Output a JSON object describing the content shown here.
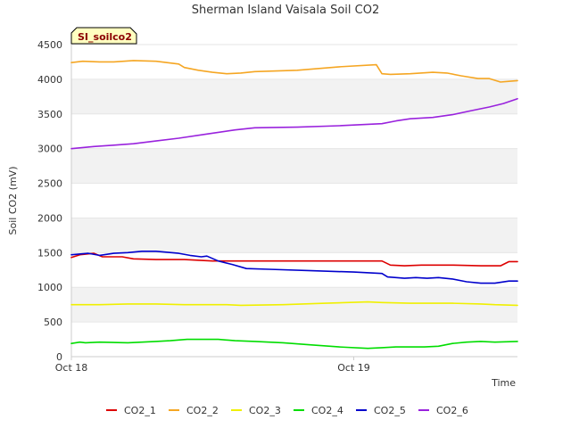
{
  "chart_data": {
    "type": "line",
    "title": "Sherman Island Vaisala Soil CO2",
    "station_badge": "SI_soilco2",
    "xlabel": "Time",
    "ylabel": "Soil CO2 (mV)",
    "ylim": [
      0,
      4500
    ],
    "xlim": [
      0,
      1.58
    ],
    "yticks": [
      0,
      500,
      1000,
      1500,
      2000,
      2500,
      3000,
      3500,
      4000,
      4500
    ],
    "xticks": [
      {
        "value": 0,
        "label": "Oct 18"
      },
      {
        "value": 1,
        "label": "Oct 19"
      }
    ],
    "grid": "horizontal bands",
    "legend_position": "bottom",
    "series": [
      {
        "name": "CO2_1",
        "color": "#dd0000",
        "points": [
          [
            0.0,
            1430
          ],
          [
            0.03,
            1470
          ],
          [
            0.08,
            1490
          ],
          [
            0.11,
            1440
          ],
          [
            0.18,
            1440
          ],
          [
            0.22,
            1410
          ],
          [
            0.3,
            1400
          ],
          [
            0.4,
            1400
          ],
          [
            0.5,
            1380
          ],
          [
            0.65,
            1380
          ],
          [
            0.8,
            1380
          ],
          [
            1.0,
            1380
          ],
          [
            1.1,
            1380
          ],
          [
            1.13,
            1320
          ],
          [
            1.18,
            1310
          ],
          [
            1.24,
            1320
          ],
          [
            1.35,
            1320
          ],
          [
            1.45,
            1310
          ],
          [
            1.52,
            1310
          ],
          [
            1.55,
            1370
          ],
          [
            1.58,
            1370
          ]
        ]
      },
      {
        "name": "CO2_2",
        "color": "#f5a623",
        "points": [
          [
            0.0,
            4240
          ],
          [
            0.04,
            4260
          ],
          [
            0.1,
            4250
          ],
          [
            0.15,
            4250
          ],
          [
            0.22,
            4270
          ],
          [
            0.3,
            4260
          ],
          [
            0.38,
            4220
          ],
          [
            0.4,
            4170
          ],
          [
            0.45,
            4130
          ],
          [
            0.5,
            4100
          ],
          [
            0.55,
            4080
          ],
          [
            0.6,
            4090
          ],
          [
            0.65,
            4110
          ],
          [
            0.8,
            4130
          ],
          [
            0.95,
            4180
          ],
          [
            1.08,
            4210
          ],
          [
            1.1,
            4080
          ],
          [
            1.13,
            4070
          ],
          [
            1.2,
            4080
          ],
          [
            1.28,
            4100
          ],
          [
            1.33,
            4090
          ],
          [
            1.38,
            4050
          ],
          [
            1.44,
            4010
          ],
          [
            1.48,
            4010
          ],
          [
            1.52,
            3960
          ],
          [
            1.55,
            3970
          ],
          [
            1.58,
            3980
          ]
        ]
      },
      {
        "name": "CO2_3",
        "color": "#f0f000",
        "points": [
          [
            0.0,
            750
          ],
          [
            0.1,
            750
          ],
          [
            0.2,
            760
          ],
          [
            0.3,
            760
          ],
          [
            0.4,
            750
          ],
          [
            0.55,
            750
          ],
          [
            0.6,
            740
          ],
          [
            0.75,
            750
          ],
          [
            0.9,
            770
          ],
          [
            1.05,
            790
          ],
          [
            1.1,
            780
          ],
          [
            1.2,
            770
          ],
          [
            1.35,
            770
          ],
          [
            1.45,
            760
          ],
          [
            1.5,
            750
          ],
          [
            1.58,
            740
          ]
        ]
      },
      {
        "name": "CO2_4",
        "color": "#00dd00",
        "points": [
          [
            0.0,
            190
          ],
          [
            0.03,
            210
          ],
          [
            0.05,
            200
          ],
          [
            0.1,
            210
          ],
          [
            0.2,
            200
          ],
          [
            0.25,
            210
          ],
          [
            0.3,
            220
          ],
          [
            0.35,
            230
          ],
          [
            0.41,
            250
          ],
          [
            0.52,
            250
          ],
          [
            0.58,
            230
          ],
          [
            0.65,
            220
          ],
          [
            0.75,
            200
          ],
          [
            0.85,
            170
          ],
          [
            0.95,
            140
          ],
          [
            1.05,
            120
          ],
          [
            1.1,
            130
          ],
          [
            1.15,
            140
          ],
          [
            1.25,
            140
          ],
          [
            1.3,
            150
          ],
          [
            1.35,
            190
          ],
          [
            1.4,
            210
          ],
          [
            1.45,
            220
          ],
          [
            1.5,
            210
          ],
          [
            1.58,
            220
          ]
        ]
      },
      {
        "name": "CO2_5",
        "color": "#0000cc",
        "points": [
          [
            0.0,
            1470
          ],
          [
            0.06,
            1490
          ],
          [
            0.1,
            1460
          ],
          [
            0.15,
            1490
          ],
          [
            0.2,
            1500
          ],
          [
            0.25,
            1520
          ],
          [
            0.3,
            1520
          ],
          [
            0.38,
            1490
          ],
          [
            0.42,
            1460
          ],
          [
            0.46,
            1440
          ],
          [
            0.48,
            1450
          ],
          [
            0.52,
            1380
          ],
          [
            0.57,
            1330
          ],
          [
            0.62,
            1270
          ],
          [
            0.7,
            1260
          ],
          [
            0.85,
            1240
          ],
          [
            1.0,
            1220
          ],
          [
            1.1,
            1200
          ],
          [
            1.12,
            1150
          ],
          [
            1.18,
            1130
          ],
          [
            1.22,
            1140
          ],
          [
            1.26,
            1130
          ],
          [
            1.3,
            1140
          ],
          [
            1.35,
            1120
          ],
          [
            1.4,
            1080
          ],
          [
            1.45,
            1060
          ],
          [
            1.5,
            1060
          ],
          [
            1.55,
            1090
          ],
          [
            1.58,
            1090
          ]
        ]
      },
      {
        "name": "CO2_6",
        "color": "#9922dd",
        "points": [
          [
            0.0,
            3000
          ],
          [
            0.08,
            3030
          ],
          [
            0.15,
            3050
          ],
          [
            0.22,
            3070
          ],
          [
            0.3,
            3110
          ],
          [
            0.38,
            3150
          ],
          [
            0.48,
            3210
          ],
          [
            0.58,
            3270
          ],
          [
            0.65,
            3300
          ],
          [
            0.8,
            3310
          ],
          [
            0.95,
            3330
          ],
          [
            1.05,
            3350
          ],
          [
            1.1,
            3360
          ],
          [
            1.15,
            3400
          ],
          [
            1.2,
            3430
          ],
          [
            1.28,
            3450
          ],
          [
            1.35,
            3490
          ],
          [
            1.42,
            3550
          ],
          [
            1.48,
            3600
          ],
          [
            1.53,
            3650
          ],
          [
            1.58,
            3720
          ]
        ]
      }
    ]
  }
}
